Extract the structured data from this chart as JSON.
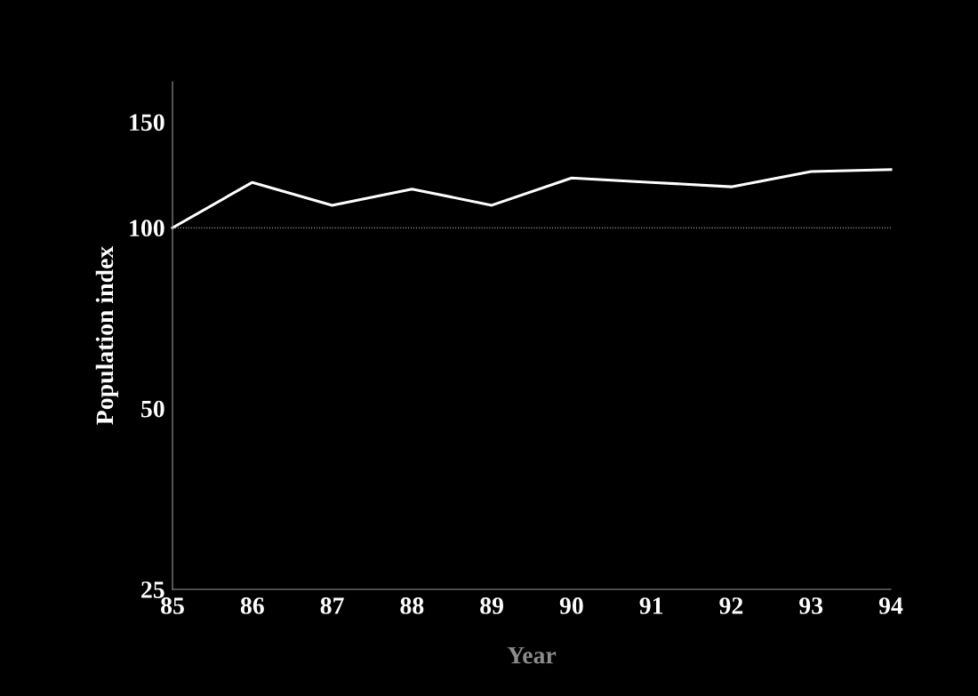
{
  "chart_data": {
    "type": "line",
    "xlabel": "Year",
    "ylabel": "Population index",
    "log": "y",
    "x": [
      85,
      86,
      87,
      88,
      89,
      90,
      91,
      92,
      93,
      94
    ],
    "series": [
      {
        "color": "#ffffff",
        "values": [
          100,
          119,
          109,
          116,
          109,
          121,
          119,
          117,
          124,
          125
        ]
      }
    ],
    "xlim": [
      85,
      94
    ],
    "xticks": [
      85,
      86,
      87,
      88,
      89,
      90,
      91,
      92,
      93,
      94
    ],
    "ylim": [
      25,
      175
    ],
    "yticks": [
      25,
      50,
      100,
      150
    ],
    "ref_lines": [
      {
        "axis": "y",
        "value": 100,
        "color": "#cccccc",
        "line_style": "dotted"
      }
    ],
    "grid": false,
    "legend": false,
    "marker": "none",
    "line_style": "solid"
  }
}
